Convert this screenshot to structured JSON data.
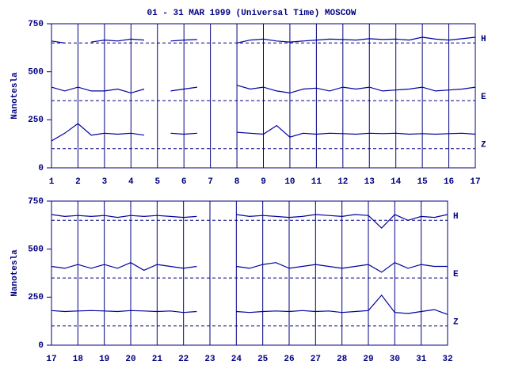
{
  "chart_data": [
    {
      "type": "line",
      "title": "01 - 31 MAR 1999 (Universal Time) MOSCOW",
      "ylabel": "Nanotesla",
      "x": [
        1,
        1.5,
        2,
        2.5,
        3,
        3.5,
        4,
        4.5,
        5,
        5.5,
        6,
        6.5,
        7,
        7.5,
        8,
        8.5,
        9,
        9.5,
        10,
        10.5,
        11,
        11.5,
        12,
        12.5,
        13,
        13.5,
        14,
        14.5,
        15,
        15.5,
        16,
        16.5,
        17
      ],
      "xlim": [
        1,
        17
      ],
      "xticks": [
        1,
        2,
        3,
        4,
        5,
        6,
        7,
        8,
        9,
        10,
        11,
        12,
        13,
        14,
        15,
        16,
        17
      ],
      "ylim": [
        0,
        750
      ],
      "yticks": [
        0,
        250,
        500,
        750
      ],
      "grid": true,
      "series": [
        {
          "name": "H",
          "color": "#0000a0",
          "baseline": 650,
          "values": [
            660,
            650,
            null,
            655,
            665,
            660,
            670,
            665,
            null,
            660,
            665,
            668,
            null,
            null,
            650,
            665,
            670,
            660,
            655,
            660,
            665,
            670,
            668,
            665,
            672,
            668,
            670,
            665,
            680,
            670,
            665,
            672,
            680
          ]
        },
        {
          "name": "E",
          "color": "#0000a0",
          "baseline": 350,
          "values": [
            420,
            400,
            420,
            400,
            400,
            410,
            390,
            410,
            null,
            400,
            410,
            420,
            null,
            null,
            430,
            410,
            420,
            400,
            390,
            410,
            415,
            400,
            420,
            410,
            420,
            400,
            405,
            410,
            420,
            400,
            405,
            410,
            420
          ]
        },
        {
          "name": "Z",
          "color": "#0000a0",
          "baseline": 100,
          "values": [
            140,
            180,
            230,
            170,
            180,
            175,
            180,
            170,
            null,
            180,
            175,
            180,
            null,
            null,
            185,
            180,
            175,
            220,
            160,
            180,
            175,
            180,
            178,
            175,
            180,
            178,
            180,
            175,
            178,
            175,
            178,
            180,
            175
          ]
        }
      ]
    },
    {
      "type": "line",
      "ylabel": "Nanotesla",
      "x": [
        17,
        17.5,
        18,
        18.5,
        19,
        19.5,
        20,
        20.5,
        21,
        21.5,
        22,
        22.5,
        23,
        23.5,
        24,
        24.5,
        25,
        25.5,
        26,
        26.5,
        27,
        27.5,
        28,
        28.5,
        29,
        29.5,
        30,
        30.5,
        31,
        31.5,
        32
      ],
      "xlim": [
        17,
        32
      ],
      "xticks": [
        17,
        18,
        19,
        20,
        21,
        22,
        23,
        24,
        25,
        26,
        27,
        28,
        29,
        30,
        31,
        32
      ],
      "ylim": [
        0,
        750
      ],
      "yticks": [
        0,
        250,
        500,
        750
      ],
      "grid": true,
      "series": [
        {
          "name": "H",
          "color": "#0000a0",
          "baseline": 650,
          "values": [
            680,
            670,
            675,
            670,
            675,
            665,
            675,
            670,
            675,
            670,
            665,
            670,
            null,
            null,
            680,
            670,
            675,
            670,
            665,
            670,
            680,
            675,
            670,
            680,
            675,
            610,
            680,
            650,
            670,
            665,
            680
          ]
        },
        {
          "name": "E",
          "color": "#0000a0",
          "baseline": 350,
          "values": [
            410,
            400,
            420,
            400,
            420,
            400,
            430,
            390,
            420,
            410,
            400,
            410,
            null,
            null,
            410,
            400,
            420,
            430,
            400,
            410,
            420,
            410,
            400,
            410,
            420,
            380,
            430,
            400,
            420,
            410,
            410
          ]
        },
        {
          "name": "Z",
          "color": "#0000a0",
          "baseline": 100,
          "values": [
            180,
            175,
            178,
            180,
            178,
            175,
            180,
            178,
            175,
            178,
            170,
            175,
            null,
            null,
            175,
            170,
            175,
            178,
            175,
            180,
            175,
            178,
            170,
            175,
            180,
            260,
            170,
            165,
            175,
            185,
            160
          ]
        }
      ]
    }
  ]
}
